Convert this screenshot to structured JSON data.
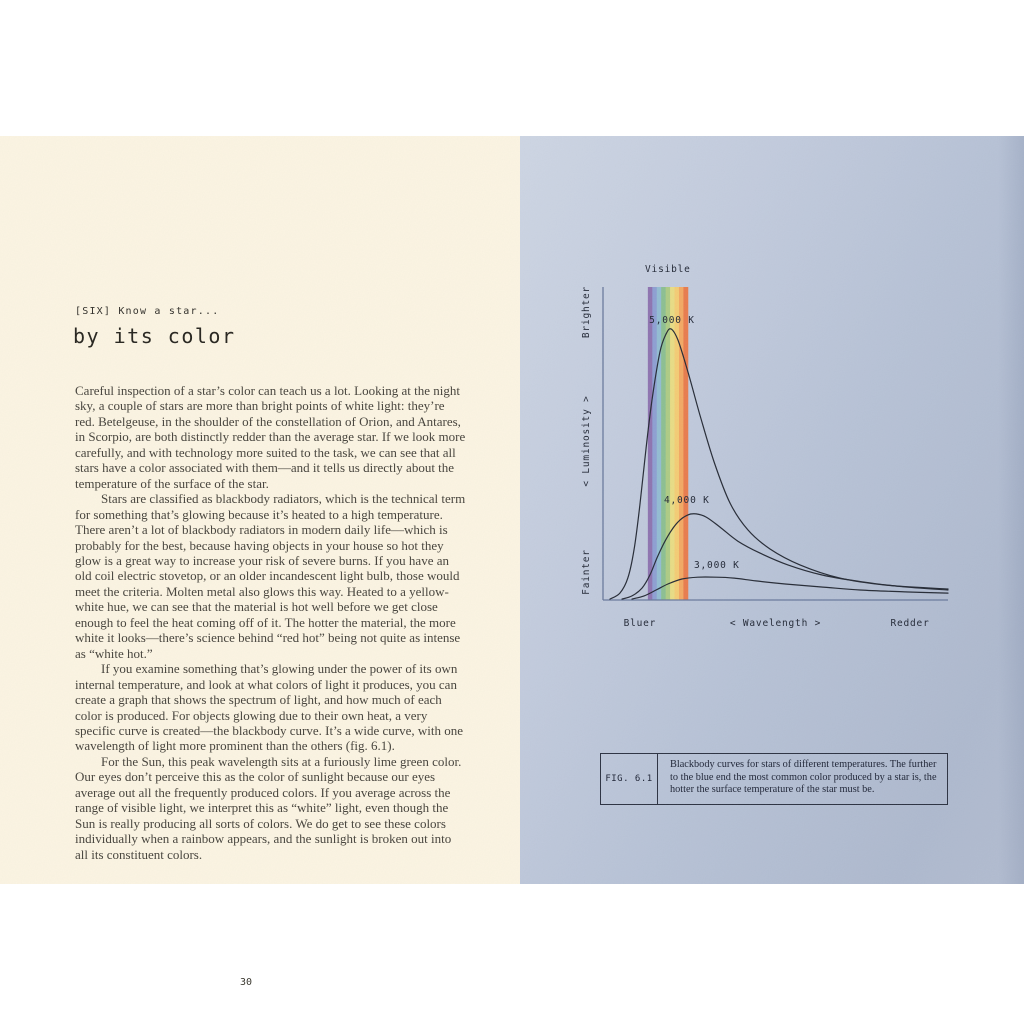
{
  "left_page": {
    "kicker": "[SIX] Know a star...",
    "title": "by its color",
    "paragraphs": [
      "Careful inspection of a star’s color can teach us a lot. Looking at the night sky, a couple of stars are more than bright points of white light: they’re red. Betelgeuse, in the shoulder of the constellation of Orion, and Antares, in Scorpio, are both distinctly redder than the average star. If we look more carefully, and with technology more suited to the task, we can see that all stars have a color associated with them—and it tells us directly about the temperature of the surface of the star.",
      "Stars are classified as blackbody radiators, which is the technical term for something that’s glowing because it’s heated to a high temperature. There aren’t a lot of blackbody radiators in modern daily life—which is probably for the best, because having objects in your house so hot they glow is a great way to increase your risk of severe burns. If you have an old coil electric stovetop, or an older incandescent light bulb, those would meet the criteria. Molten metal also glows this way. Heated to a yellow-white hue, we can see that the material is hot well before we get close enough to feel the heat coming off of it. The hotter the material, the more white it looks—there’s science behind “red hot” being not quite as intense as “white hot.”",
      "If you examine something that’s glowing under the power of its own internal temperature, and look at what colors of light it produces, you can create a graph that shows the spectrum of light, and how much of each color is produced. For objects glowing due to their own heat, a very specific curve is created—the blackbody curve. It’s a wide curve, with one wavelength of light more prominent than the others (fig. 6.1).",
      "For the Sun, this peak wavelength sits at a furiously lime green color. Our eyes don’t perceive this as the color of sunlight because our eyes average out all the frequently produced colors. If you average across the range of visible light, we interpret this as “white” light, even though the Sun is really producing all sorts of colors. We do get to see these colors individually when a rainbow appears, and the sunlight is broken out into all its constituent colors."
    ],
    "page_number": "30"
  },
  "right_page": {
    "caption": {
      "fig_label": "FIG. 6.1",
      "text": "Blackbody curves for stars of different temperatures. The further to the blue end the most common color produced by a star is, the hotter the surface temperature of the star must be."
    }
  },
  "chart_data": {
    "type": "line",
    "band_label": "Visible",
    "xlabel": "< Wavelength >",
    "ylabel": "< Luminosity >",
    "x_end_labels": {
      "left": "Bluer",
      "right": "Redder"
    },
    "y_end_labels": {
      "top": "Brighter",
      "bottom": "Fainter"
    },
    "axis_color": "#6a7a9d",
    "ink_color": "#262b36",
    "text_color": "#242a38",
    "x_axis_note": "relative wavelength, blue (left) to red (right), 0-1",
    "y_axis_note": "relative luminosity, 0-1",
    "visible_band": {
      "x0": 0.13,
      "x1": 0.246,
      "colors": [
        "#8e74b0",
        "#8e9fd2",
        "#93bcd2",
        "#8cbf92",
        "#aecb85",
        "#e8dc85",
        "#f3cc75",
        "#f2a964",
        "#e87c4e"
      ]
    },
    "series": [
      {
        "name": "5,000 K",
        "label_pos": [
          0.2,
          0.885
        ],
        "points": [
          [
            0.02,
            0.003
          ],
          [
            0.049,
            0.022
          ],
          [
            0.072,
            0.07
          ],
          [
            0.09,
            0.16
          ],
          [
            0.107,
            0.304
          ],
          [
            0.125,
            0.486
          ],
          [
            0.142,
            0.639
          ],
          [
            0.165,
            0.792
          ],
          [
            0.183,
            0.85
          ],
          [
            0.197,
            0.866
          ],
          [
            0.217,
            0.831
          ],
          [
            0.246,
            0.729
          ],
          [
            0.281,
            0.591
          ],
          [
            0.322,
            0.441
          ],
          [
            0.368,
            0.31
          ],
          [
            0.42,
            0.224
          ],
          [
            0.484,
            0.163
          ],
          [
            0.571,
            0.112
          ],
          [
            0.687,
            0.07
          ],
          [
            0.817,
            0.048
          ],
          [
            1.0,
            0.035
          ]
        ]
      },
      {
        "name": "4,000 K",
        "label_pos": [
          0.243,
          0.31
        ],
        "points": [
          [
            0.055,
            0.003
          ],
          [
            0.084,
            0.013
          ],
          [
            0.113,
            0.038
          ],
          [
            0.136,
            0.08
          ],
          [
            0.159,
            0.141
          ],
          [
            0.188,
            0.204
          ],
          [
            0.217,
            0.249
          ],
          [
            0.246,
            0.272
          ],
          [
            0.27,
            0.275
          ],
          [
            0.299,
            0.265
          ],
          [
            0.339,
            0.233
          ],
          [
            0.391,
            0.188
          ],
          [
            0.455,
            0.15
          ],
          [
            0.536,
            0.112
          ],
          [
            0.635,
            0.08
          ],
          [
            0.751,
            0.058
          ],
          [
            0.875,
            0.042
          ],
          [
            1.0,
            0.032
          ]
        ]
      },
      {
        "name": "3,000 K",
        "label_pos": [
          0.33,
          0.103
        ],
        "points": [
          [
            0.084,
            0.003
          ],
          [
            0.119,
            0.013
          ],
          [
            0.154,
            0.032
          ],
          [
            0.188,
            0.051
          ],
          [
            0.229,
            0.067
          ],
          [
            0.275,
            0.073
          ],
          [
            0.328,
            0.073
          ],
          [
            0.38,
            0.07
          ],
          [
            0.443,
            0.061
          ],
          [
            0.528,
            0.051
          ],
          [
            0.629,
            0.042
          ],
          [
            0.745,
            0.032
          ],
          [
            0.875,
            0.026
          ],
          [
            1.0,
            0.022
          ]
        ]
      }
    ]
  }
}
